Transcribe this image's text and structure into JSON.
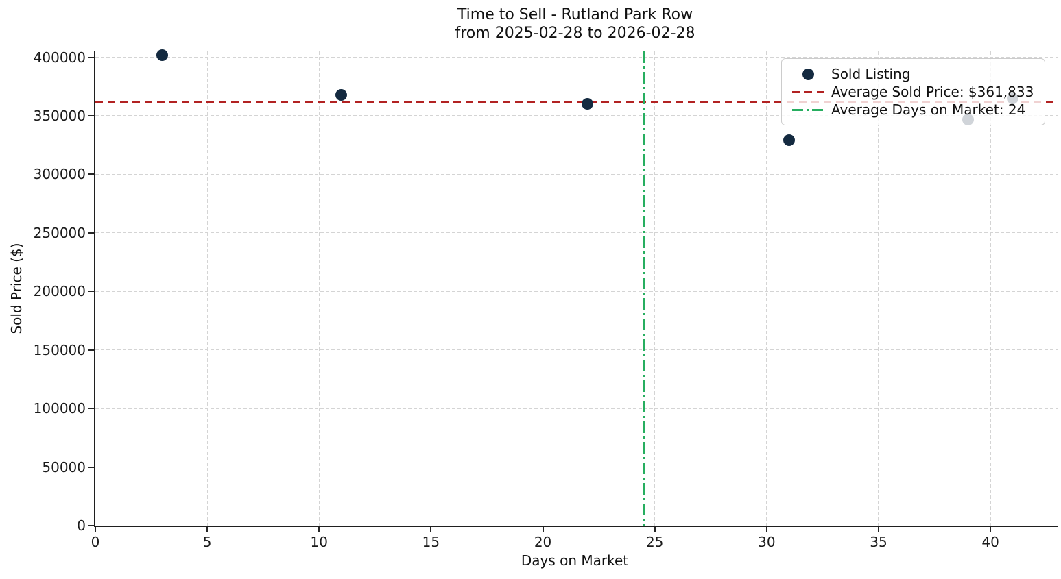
{
  "chart_data": {
    "type": "scatter",
    "title": "Time to Sell - Rutland Park Row",
    "subtitle": "from 2025-02-28 to 2026-02-28",
    "xlabel": "Days on Market",
    "ylabel": "Sold Price ($)",
    "xlim": [
      0,
      43
    ],
    "ylim": [
      0,
      405000
    ],
    "xticks": [
      0,
      5,
      10,
      15,
      20,
      25,
      30,
      35,
      40
    ],
    "yticks": [
      0,
      50000,
      100000,
      150000,
      200000,
      250000,
      300000,
      350000,
      400000
    ],
    "grid": true,
    "legend_position": "upper right",
    "series": [
      {
        "name": "Sold Listing",
        "marker": "circle",
        "color": "#142a40",
        "points": [
          {
            "days_on_market": 3,
            "sold_price": 402000
          },
          {
            "days_on_market": 11,
            "sold_price": 368000
          },
          {
            "days_on_market": 22,
            "sold_price": 360000
          },
          {
            "days_on_market": 31,
            "sold_price": 329000
          },
          {
            "days_on_market": 39,
            "sold_price": 347000
          },
          {
            "days_on_market": 41,
            "sold_price": 365000
          }
        ]
      }
    ],
    "reference_lines": {
      "avg_sold_price": {
        "value": 361833,
        "orientation": "horizontal",
        "style": "dashed",
        "color": "#b22222"
      },
      "avg_days_on_market": {
        "value": 24.5,
        "orientation": "vertical",
        "style": "dashdot",
        "color": "#27ae60"
      }
    },
    "legend": {
      "items": [
        {
          "label": "Sold Listing",
          "marker": "dot",
          "color": "#142a40"
        },
        {
          "label": "Average Sold Price: $361,833",
          "marker": "dashed",
          "color": "#b22222"
        },
        {
          "label": "Average Days on Market: 24",
          "marker": "dashdot",
          "color": "#27ae60"
        }
      ]
    }
  }
}
